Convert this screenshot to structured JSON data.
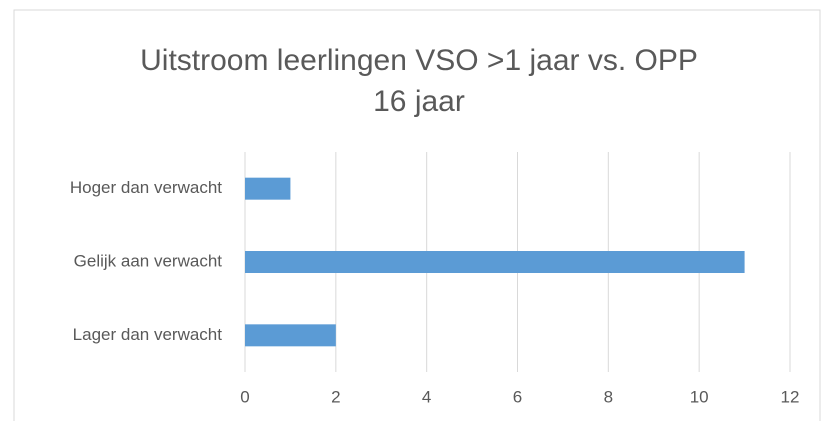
{
  "chart_data": {
    "type": "bar",
    "orientation": "horizontal",
    "title": [
      "Uitstroom leerlingen VSO >1 jaar vs. OPP",
      "16 jaar"
    ],
    "categories": [
      "Hoger dan verwacht",
      "Gelijk aan verwacht",
      "Lager dan verwacht"
    ],
    "values": [
      1,
      11,
      2
    ],
    "color": "#5b9bd5",
    "xlim": [
      0,
      12
    ],
    "xticks": [
      0,
      2,
      4,
      6,
      8,
      10,
      12
    ],
    "grid": true
  }
}
